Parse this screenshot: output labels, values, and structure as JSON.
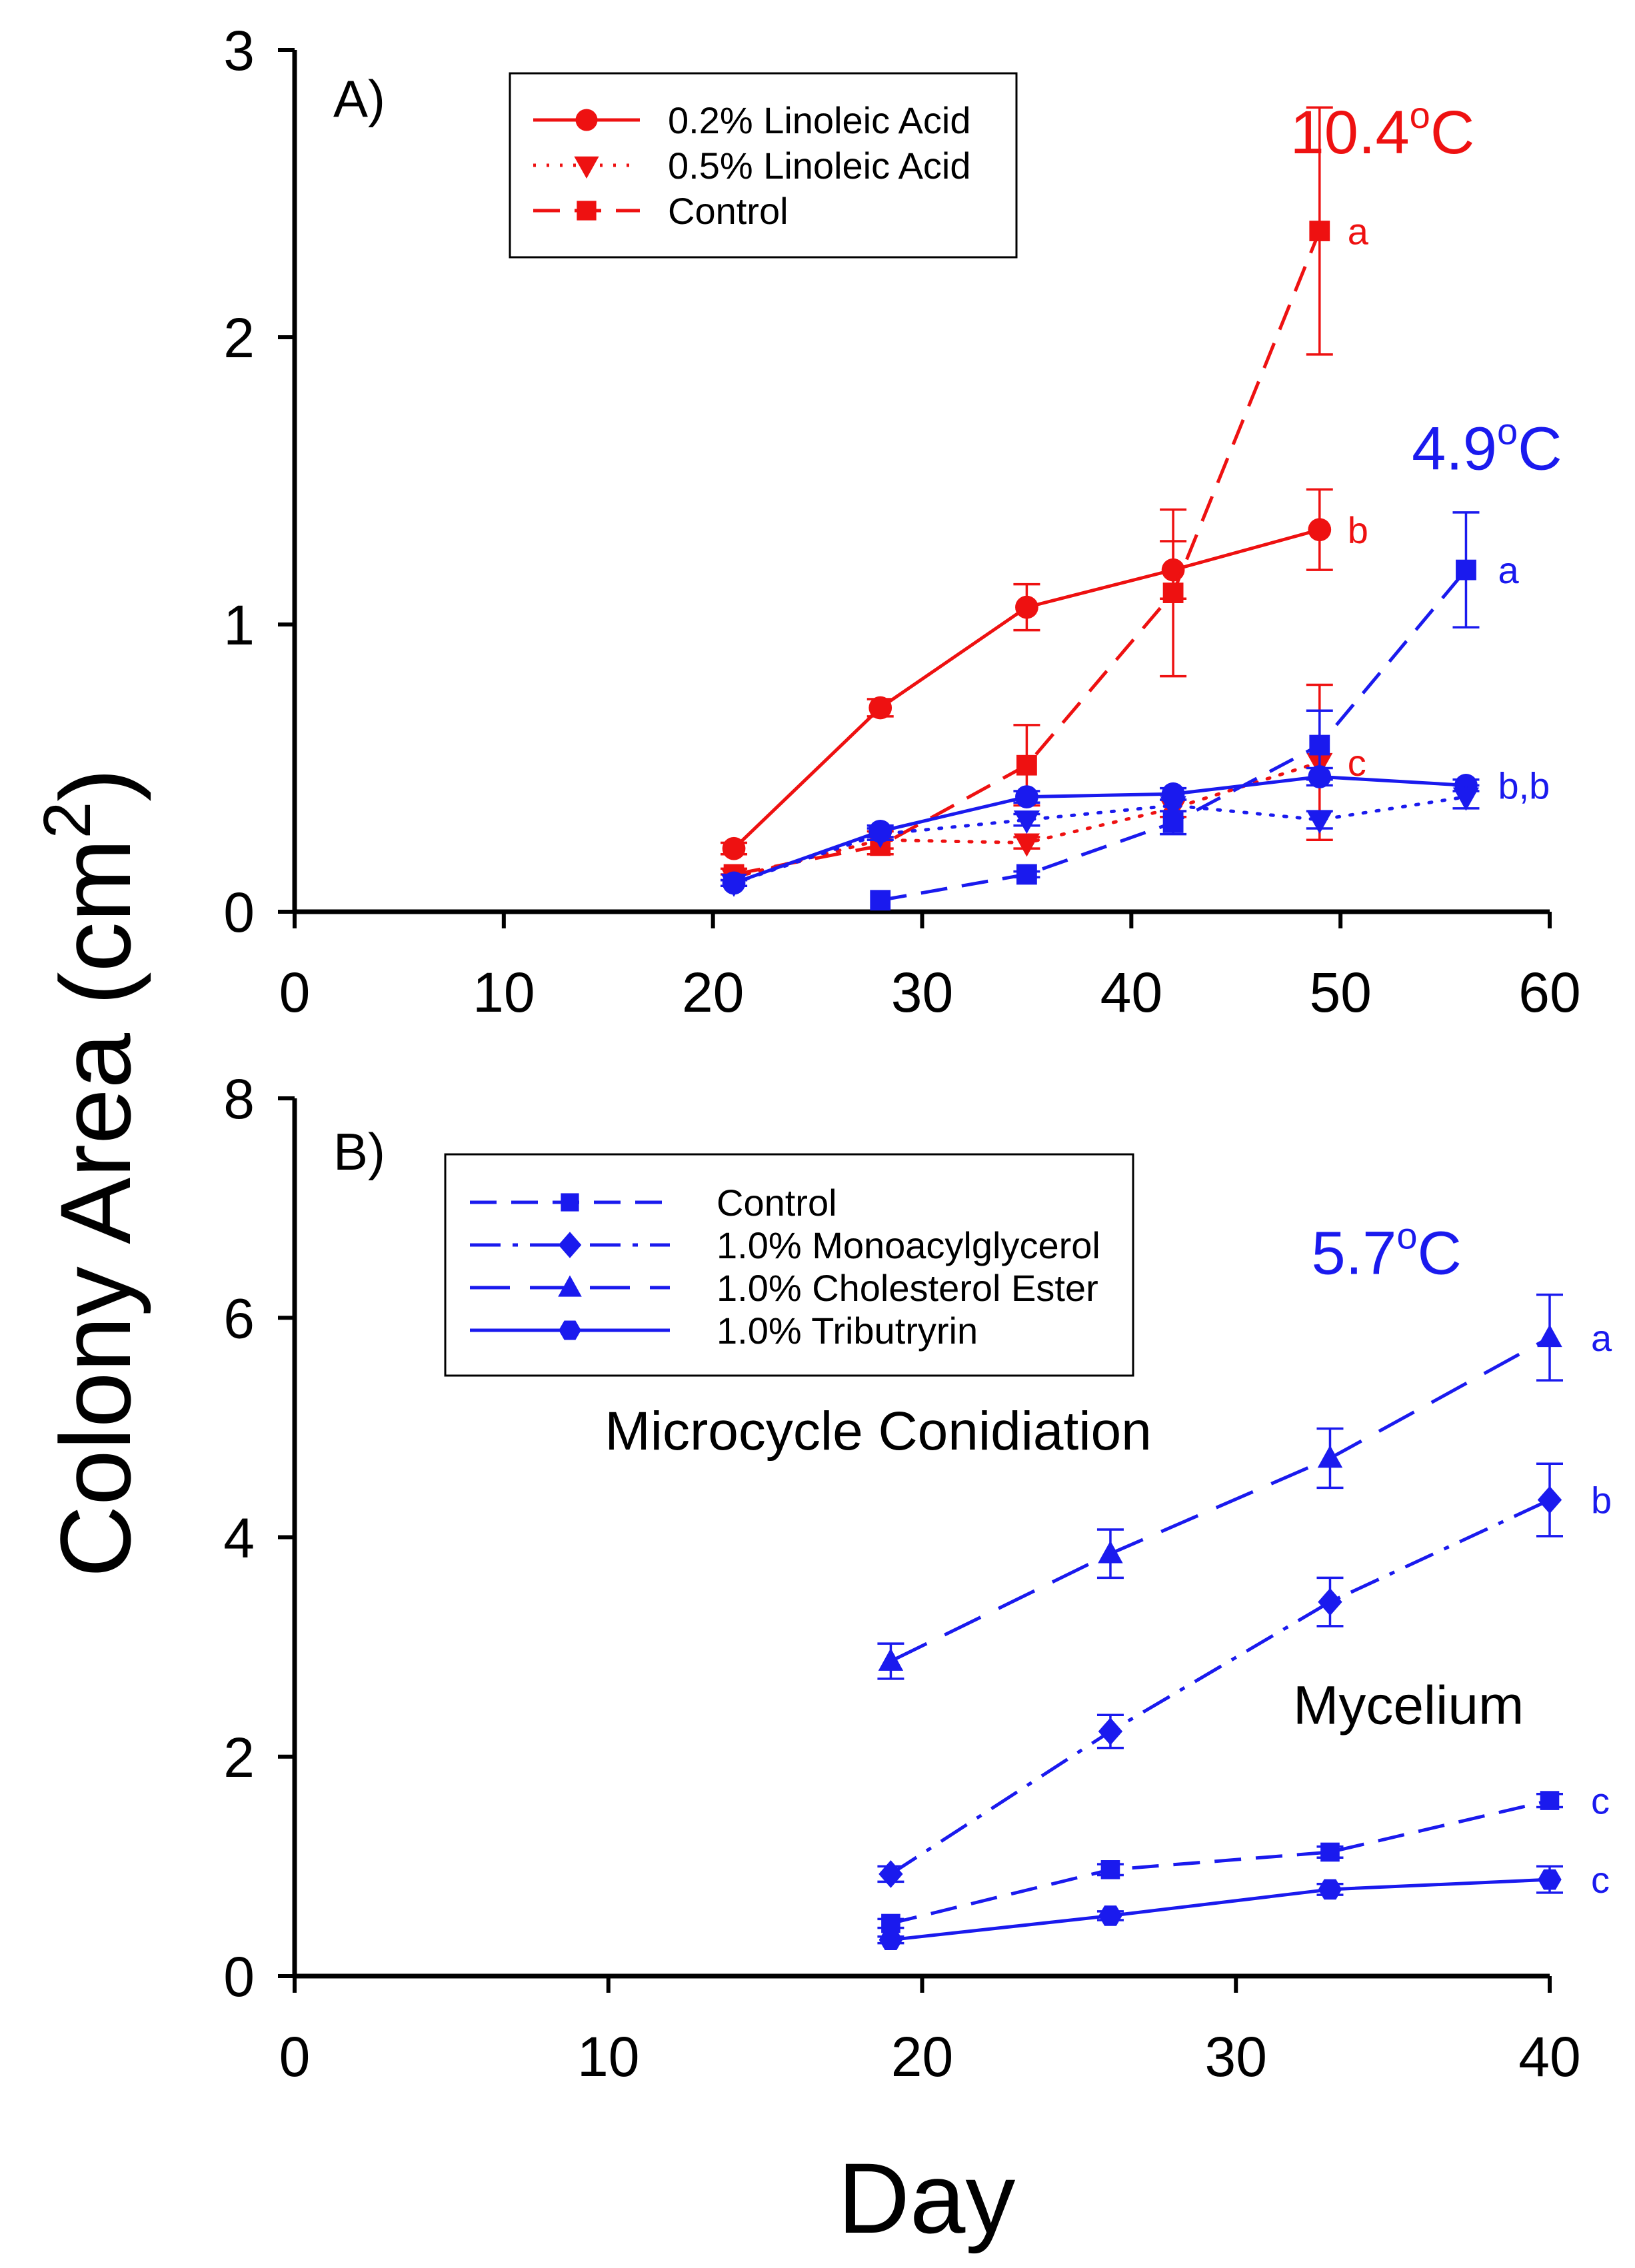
{
  "figure": {
    "ylabel": "Colony Area (cm",
    "ylabel_sup": "2",
    "ylabel_close": ")",
    "xlabel": "Day"
  },
  "chart_data": [
    {
      "type": "line",
      "panel": "A)",
      "xlim": [
        0,
        60
      ],
      "ylim": [
        0,
        3
      ],
      "xticks": [
        0,
        10,
        20,
        30,
        40,
        50,
        60
      ],
      "yticks": [
        0,
        1,
        2,
        3
      ],
      "xtick_labels": [
        "0",
        "10",
        "20",
        "30",
        "40",
        "50",
        "60"
      ],
      "ytick_labels": [
        "0",
        "1",
        "2",
        "3"
      ],
      "legend_position": "top-center",
      "legend": [
        "0.2% Linoleic Acid",
        "0.5% Linoleic Acid",
        "Control"
      ],
      "annotations": [
        {
          "text": "10.4",
          "sup": "o",
          "unit": "C",
          "color": "#ee1111",
          "x": 52,
          "y": 2.64
        },
        {
          "text": "4.9",
          "sup": "o",
          "unit": "C",
          "color": "#1a1aee",
          "x": 57,
          "y": 1.54
        }
      ],
      "series": [
        {
          "name": "0.2% Linoleic Acid",
          "temperature": "10.4°C",
          "color": "#ee1111",
          "dash": "solid",
          "marker": "circle",
          "x": [
            21,
            28,
            35,
            42,
            49
          ],
          "y": [
            0.22,
            0.71,
            1.06,
            1.19,
            1.33
          ],
          "err": [
            0.02,
            0.03,
            0.08,
            0.1,
            0.14
          ],
          "letter": "b"
        },
        {
          "name": "0.5% Linoleic Acid",
          "temperature": "10.4°C",
          "color": "#ee1111",
          "dash": "dot",
          "marker": "triangle-down",
          "x": [
            21,
            28,
            35,
            42,
            49
          ],
          "y": [
            0.12,
            0.25,
            0.24,
            0.36,
            0.52
          ],
          "err": [
            0.01,
            0.03,
            0.02,
            0.03,
            0.27
          ],
          "letter": "c"
        },
        {
          "name": "Control",
          "temperature": "10.4°C",
          "color": "#ee1111",
          "dash": "dash",
          "marker": "square",
          "x": [
            21,
            28,
            35,
            42,
            49
          ],
          "y": [
            0.13,
            0.23,
            0.51,
            1.11,
            2.37
          ],
          "err": [
            0.02,
            0.03,
            0.14,
            0.29,
            0.43
          ],
          "letter": "a"
        },
        {
          "name": "0.2% Linoleic Acid",
          "temperature": "4.9°C",
          "color": "#1a1aee",
          "dash": "solid",
          "marker": "circle",
          "x": [
            21,
            28,
            35,
            42,
            49,
            56
          ],
          "y": [
            0.1,
            0.28,
            0.4,
            0.41,
            0.47,
            0.44
          ],
          "err": [
            0.01,
            0.02,
            0.02,
            0.02,
            0.03,
            0.02
          ],
          "letter": "b,b"
        },
        {
          "name": "0.5% Linoleic Acid",
          "temperature": "4.9°C",
          "color": "#1a1aee",
          "dash": "dot",
          "marker": "triangle-down",
          "x": [
            21,
            28,
            35,
            42,
            49,
            56
          ],
          "y": [
            0.1,
            0.27,
            0.32,
            0.37,
            0.32,
            0.4
          ],
          "err": [
            0.01,
            0.02,
            0.02,
            0.02,
            0.03,
            0.04
          ],
          "letter": ""
        },
        {
          "name": "Control",
          "temperature": "4.9°C",
          "color": "#1a1aee",
          "dash": "dash",
          "marker": "square",
          "x": [
            28,
            35,
            42,
            49,
            56
          ],
          "y": [
            0.04,
            0.13,
            0.31,
            0.58,
            1.19
          ],
          "err": [
            0.0,
            0.01,
            0.04,
            0.12,
            0.2
          ],
          "letter": "a"
        }
      ]
    },
    {
      "type": "line",
      "panel": "B)",
      "xlim": [
        0,
        40
      ],
      "ylim": [
        0,
        8
      ],
      "xticks": [
        0,
        10,
        20,
        30,
        40
      ],
      "yticks": [
        0,
        2,
        4,
        6,
        8
      ],
      "xtick_labels": [
        "0",
        "10",
        "20",
        "30",
        "40"
      ],
      "ytick_labels": [
        "0",
        "2",
        "4",
        "6",
        "8"
      ],
      "legend_position": "top-center",
      "legend": [
        "Control",
        "1.0% Monoacylglycerol",
        "1.0% Cholesterol Ester",
        "1.0% Tributryrin"
      ],
      "annotations": [
        {
          "text": "5.7",
          "sup": "o",
          "unit": "C",
          "color": "#1a1aee",
          "x": 34.8,
          "y": 6.4
        },
        {
          "text": "Microcycle Conidiation",
          "color": "#000000",
          "x": 18.6,
          "y": 4.8
        },
        {
          "text": "Mycelium",
          "color": "#000000",
          "x": 35.5,
          "y": 2.3
        }
      ],
      "series": [
        {
          "name": "Control",
          "color": "#1a1aee",
          "dash": "dash",
          "marker": "square",
          "x": [
            19,
            26,
            33,
            40
          ],
          "y": [
            0.48,
            0.97,
            1.13,
            1.6
          ],
          "err": [
            0.04,
            0.05,
            0.05,
            0.06
          ],
          "letter": "c"
        },
        {
          "name": "1.0% Monoacylglycerol",
          "color": "#1a1aee",
          "dash": "dashdot",
          "marker": "diamond",
          "x": [
            19,
            26,
            33,
            40
          ],
          "y": [
            0.93,
            2.23,
            3.41,
            4.34
          ],
          "err": [
            0.07,
            0.15,
            0.22,
            0.33
          ],
          "letter": "b"
        },
        {
          "name": "1.0% Cholesterol Ester",
          "color": "#1a1aee",
          "dash": "longdash",
          "marker": "triangle-up",
          "x": [
            19,
            26,
            33,
            40
          ],
          "y": [
            2.87,
            3.85,
            4.72,
            5.82
          ],
          "err": [
            0.16,
            0.22,
            0.27,
            0.39
          ],
          "letter": "a"
        },
        {
          "name": "1.0% Tributryrin",
          "color": "#1a1aee",
          "dash": "solid",
          "marker": "hexagon",
          "x": [
            19,
            26,
            33,
            40
          ],
          "y": [
            0.33,
            0.55,
            0.79,
            0.88
          ],
          "err": [
            0.03,
            0.04,
            0.05,
            0.12
          ],
          "letter": "c"
        }
      ]
    }
  ]
}
